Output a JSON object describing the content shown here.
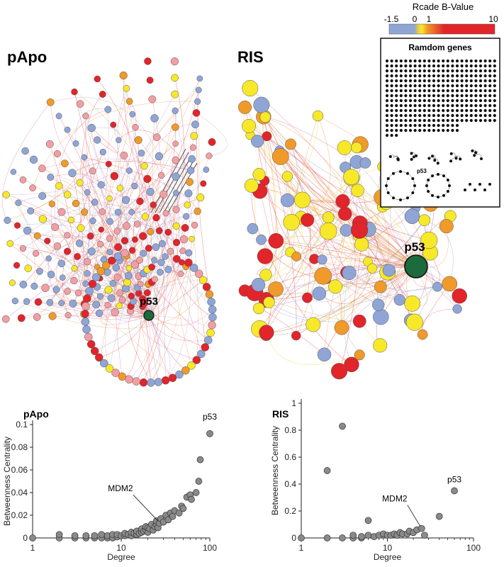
{
  "figure": {
    "legend": {
      "title": "Rcade B-Value",
      "ticks": [
        "-1.5",
        "0",
        "1",
        "10"
      ],
      "colors": {
        "low": "#8fa5d6",
        "zero": "#f2cf3a",
        "one": "#f09a2a",
        "high": "#e2242b"
      }
    },
    "node_colors": {
      "blue": "#8fa5d6",
      "pink": "#f29ea3",
      "red": "#e2242b",
      "orange": "#f09a2a",
      "yellow": "#f7e829",
      "p53": "#1d6a3c"
    },
    "networks": {
      "papo": {
        "title": "pApo",
        "hub_label": "p53"
      },
      "ris": {
        "title": "RIS",
        "hub_label": "p53"
      },
      "random": {
        "title": "Ramdom genes",
        "hub_label": "p53"
      }
    }
  },
  "chart_data": [
    {
      "type": "scatter",
      "title": "pApo",
      "xlabel": "Degree",
      "ylabel": "Betweenness Centrality",
      "xscale": "log",
      "xlim": [
        1,
        100
      ],
      "ylim": [
        0,
        0.1
      ],
      "xticks": [
        "1",
        "10",
        "100"
      ],
      "yticks": [
        "0",
        "0.02",
        "0.04",
        "0.06",
        "0.08",
        "0.1"
      ],
      "grid": false,
      "marker_color": "#8a8a8a",
      "annotations": [
        {
          "text": "p53",
          "x": 100,
          "y": 0.092
        },
        {
          "text": "MDM2",
          "x": 27,
          "y": 0.013
        }
      ],
      "points": [
        [
          1,
          0
        ],
        [
          2,
          0
        ],
        [
          2,
          0.003
        ],
        [
          3,
          0
        ],
        [
          3,
          0.002
        ],
        [
          4,
          0
        ],
        [
          4,
          0.002
        ],
        [
          5,
          0
        ],
        [
          5,
          0.002
        ],
        [
          6,
          0
        ],
        [
          6,
          0.003
        ],
        [
          7,
          0
        ],
        [
          7,
          0.002
        ],
        [
          8,
          0
        ],
        [
          8,
          0.003
        ],
        [
          9,
          0.001
        ],
        [
          9,
          0.003
        ],
        [
          10,
          0.002
        ],
        [
          11,
          0.002
        ],
        [
          11,
          0.004
        ],
        [
          12,
          0.003
        ],
        [
          13,
          0.002
        ],
        [
          13,
          0.005
        ],
        [
          14,
          0.004
        ],
        [
          15,
          0.003
        ],
        [
          15,
          0.006
        ],
        [
          16,
          0.004
        ],
        [
          17,
          0.005
        ],
        [
          17,
          0.008
        ],
        [
          18,
          0.006
        ],
        [
          19,
          0.007
        ],
        [
          19,
          0.01
        ],
        [
          20,
          0.005
        ],
        [
          20,
          0.009
        ],
        [
          21,
          0.008
        ],
        [
          22,
          0.012
        ],
        [
          23,
          0.007
        ],
        [
          24,
          0.01
        ],
        [
          25,
          0.012
        ],
        [
          25,
          0.015
        ],
        [
          26,
          0.009
        ],
        [
          27,
          0.013
        ],
        [
          28,
          0.017
        ],
        [
          30,
          0.014
        ],
        [
          32,
          0.02
        ],
        [
          34,
          0.016
        ],
        [
          36,
          0.022
        ],
        [
          38,
          0.019
        ],
        [
          40,
          0.024
        ],
        [
          45,
          0.022
        ],
        [
          48,
          0.028
        ],
        [
          50,
          0.026
        ],
        [
          55,
          0.036
        ],
        [
          60,
          0.038
        ],
        [
          62,
          0.034
        ],
        [
          70,
          0.04
        ],
        [
          75,
          0.05
        ],
        [
          78,
          0.069
        ],
        [
          100,
          0.092
        ]
      ]
    },
    {
      "type": "scatter",
      "title": "RIS",
      "xlabel": "Degree",
      "ylabel": "Betweenness Centrality",
      "xscale": "log",
      "xlim": [
        1,
        100
      ],
      "ylim": [
        0,
        1
      ],
      "xticks": [
        "1",
        "10",
        "100"
      ],
      "yticks": [
        "0",
        "0.2",
        "0.4",
        "0.6",
        "0.8",
        "1"
      ],
      "grid": false,
      "marker_color": "#8a8a8a",
      "annotations": [
        {
          "text": "p53",
          "x": 60,
          "y": 0.35
        },
        {
          "text": "MDM2",
          "x": 25,
          "y": 0.07
        }
      ],
      "points": [
        [
          1,
          0
        ],
        [
          2,
          0.5
        ],
        [
          2,
          0
        ],
        [
          3,
          0.83
        ],
        [
          3,
          0
        ],
        [
          4,
          0
        ],
        [
          4,
          0.02
        ],
        [
          5,
          0
        ],
        [
          5,
          0.01
        ],
        [
          6,
          0.13
        ],
        [
          6,
          0.02
        ],
        [
          7,
          0.01
        ],
        [
          8,
          0.02
        ],
        [
          9,
          0.03
        ],
        [
          10,
          0.02
        ],
        [
          11,
          0.02
        ],
        [
          12,
          0.03
        ],
        [
          13,
          0.02
        ],
        [
          14,
          0.04
        ],
        [
          15,
          0.03
        ],
        [
          17,
          0.03
        ],
        [
          18,
          0.05
        ],
        [
          20,
          0.04
        ],
        [
          22,
          0.06
        ],
        [
          25,
          0.07
        ],
        [
          27,
          0.02
        ],
        [
          40,
          0.16
        ],
        [
          60,
          0.35
        ]
      ]
    }
  ]
}
